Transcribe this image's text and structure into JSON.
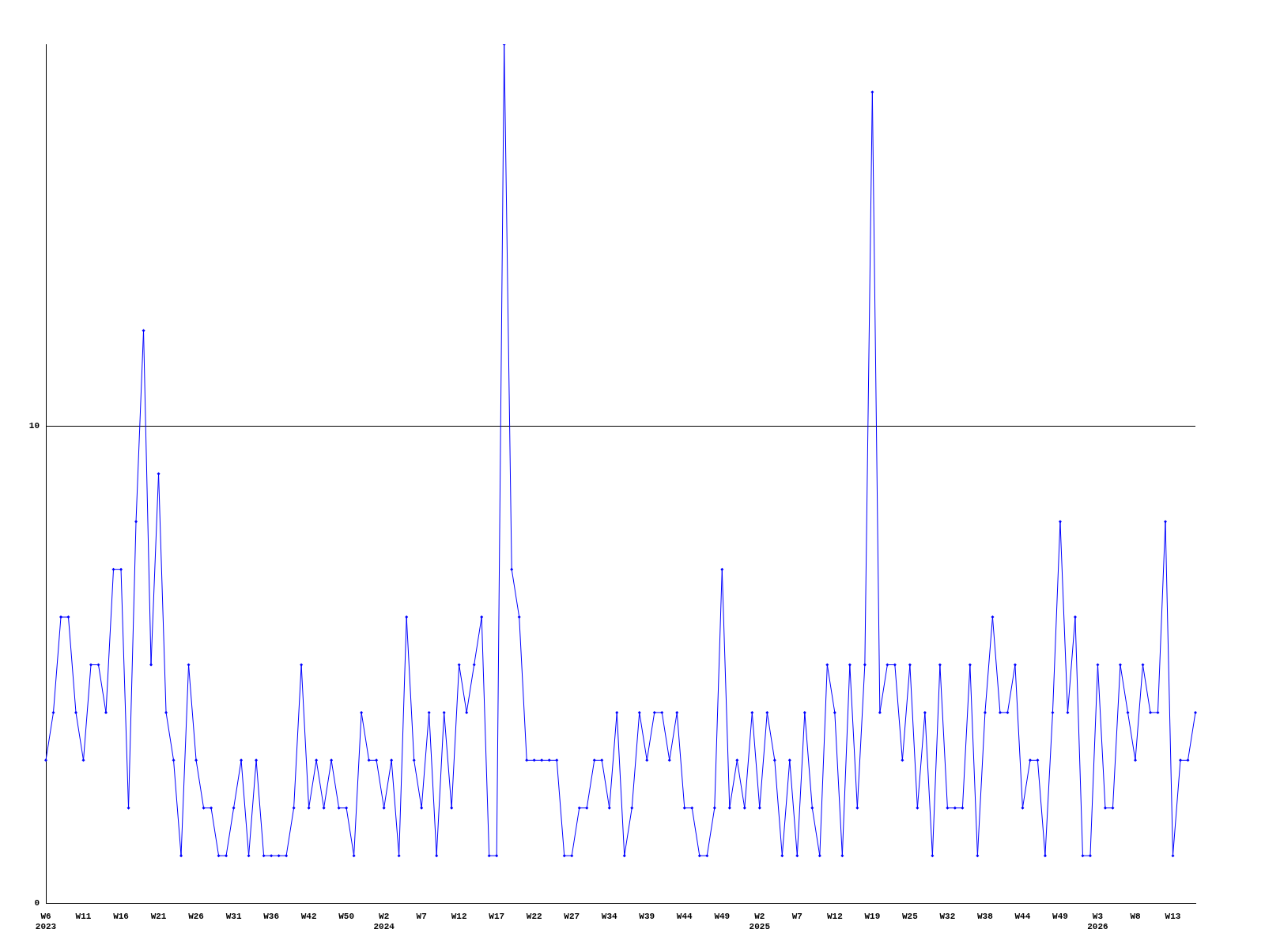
{
  "chart_data": {
    "type": "line",
    "categories": [
      "W6\n2023",
      null,
      null,
      null,
      null,
      "W11",
      null,
      null,
      null,
      null,
      "W16",
      null,
      null,
      null,
      null,
      "W21",
      null,
      null,
      null,
      null,
      "W26",
      null,
      null,
      null,
      null,
      "W31",
      null,
      null,
      null,
      null,
      "W36",
      null,
      null,
      null,
      null,
      "W42",
      null,
      null,
      null,
      null,
      "W50",
      null,
      null,
      null,
      null,
      "W2\n2024",
      null,
      null,
      null,
      null,
      "W7",
      null,
      null,
      null,
      null,
      "W12",
      null,
      null,
      null,
      null,
      "W17",
      null,
      null,
      null,
      null,
      "W22",
      null,
      null,
      null,
      null,
      "W27",
      null,
      null,
      null,
      null,
      "W34",
      null,
      null,
      null,
      null,
      "W39",
      null,
      null,
      null,
      null,
      "W44",
      null,
      null,
      null,
      null,
      "W49",
      null,
      null,
      null,
      null,
      "W2\n2025",
      null,
      null,
      null,
      null,
      "W7",
      null,
      null,
      null,
      null,
      "W12",
      null,
      null,
      null,
      null,
      "W19",
      null,
      null,
      null,
      null,
      "W25",
      null,
      null,
      null,
      null,
      "W32",
      null,
      null,
      null,
      null,
      "W38",
      null,
      null,
      null,
      null,
      "W44",
      null,
      null,
      null,
      null,
      "W49",
      null,
      null,
      null,
      null,
      "W3\n2026",
      null,
      null,
      null,
      null,
      "W8",
      null,
      null,
      null,
      null,
      "W13",
      null,
      null,
      null
    ],
    "series": [
      {
        "color": "#0000ff",
        "values": [
          3,
          4,
          6,
          6,
          4,
          3,
          5,
          5,
          4,
          7,
          7,
          2,
          8,
          12,
          5,
          9,
          4,
          3,
          1,
          5,
          3,
          2,
          2,
          1,
          1,
          2,
          3,
          1,
          3,
          1,
          1,
          1,
          1,
          2,
          5,
          2,
          3,
          2,
          3,
          2,
          2,
          1,
          4,
          3,
          3,
          2,
          3,
          1,
          6,
          3,
          2,
          4,
          1,
          4,
          2,
          5,
          4,
          5,
          6,
          1,
          1,
          18,
          7,
          6,
          3,
          3,
          3,
          3,
          3,
          1,
          1,
          2,
          2,
          3,
          3,
          2,
          4,
          1,
          2,
          4,
          3,
          4,
          4,
          3,
          4,
          2,
          2,
          1,
          1,
          2,
          7,
          2,
          3,
          2,
          4,
          2,
          4,
          3,
          1,
          3,
          1,
          4,
          2,
          1,
          5,
          4,
          1,
          5,
          2,
          5,
          17,
          4,
          5,
          5,
          3,
          5,
          2,
          4,
          1,
          5,
          2,
          2,
          2,
          5,
          1,
          4,
          6,
          4,
          4,
          5,
          2,
          3,
          3,
          1,
          4,
          8,
          4,
          6,
          1,
          1,
          5,
          2,
          2,
          5,
          4,
          3,
          5,
          4,
          4,
          8,
          1,
          3,
          3,
          4
        ]
      }
    ],
    "ylim": [
      0,
      18
    ],
    "yticks": [
      0,
      10
    ],
    "grid": "y",
    "marker": "diamond",
    "line_style": "solid"
  }
}
